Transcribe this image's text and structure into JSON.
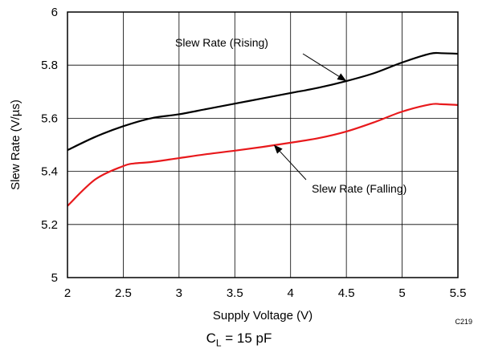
{
  "chart_data": {
    "type": "line",
    "title": "",
    "xlabel": "Supply Voltage (V)",
    "ylabel": "Slew Rate (V/µs)",
    "xlim": [
      2,
      5.5
    ],
    "ylim": [
      5,
      6
    ],
    "xticks": [
      "2",
      "2.5",
      "3",
      "3.5",
      "4",
      "4.5",
      "5",
      "5.5"
    ],
    "yticks": [
      "5",
      "5.2",
      "5.4",
      "5.6",
      "5.8",
      "6"
    ],
    "grid": true,
    "series": [
      {
        "name": "Slew Rate (Rising)",
        "color": "#000000",
        "x": [
          2.0,
          2.25,
          2.5,
          2.75,
          3.0,
          3.25,
          3.5,
          3.75,
          4.0,
          4.25,
          4.5,
          4.75,
          5.0,
          5.25,
          5.35,
          5.5
        ],
        "y": [
          5.48,
          5.53,
          5.57,
          5.6,
          5.615,
          5.635,
          5.655,
          5.675,
          5.695,
          5.715,
          5.74,
          5.77,
          5.81,
          5.843,
          5.845,
          5.843
        ]
      },
      {
        "name": "Slew Rate (Falling)",
        "color": "#e8191c",
        "x": [
          2.0,
          2.25,
          2.5,
          2.6,
          2.75,
          3.0,
          3.25,
          3.5,
          3.75,
          4.0,
          4.25,
          4.5,
          4.75,
          5.0,
          5.25,
          5.35,
          5.5
        ],
        "y": [
          5.27,
          5.37,
          5.42,
          5.43,
          5.435,
          5.45,
          5.465,
          5.478,
          5.492,
          5.508,
          5.525,
          5.55,
          5.585,
          5.625,
          5.652,
          5.653,
          5.65
        ]
      }
    ],
    "annotations": [
      {
        "text": "Slew Rate (Rising)",
        "points_to": {
          "x": 4.5,
          "y": 5.74
        }
      },
      {
        "text": "Slew Rate (Falling)",
        "points_to": {
          "x": 3.85,
          "y": 5.5
        }
      }
    ]
  },
  "figure_code": "C219",
  "caption": {
    "main": "C",
    "sub": "L",
    "rest": " = 15 pF"
  }
}
